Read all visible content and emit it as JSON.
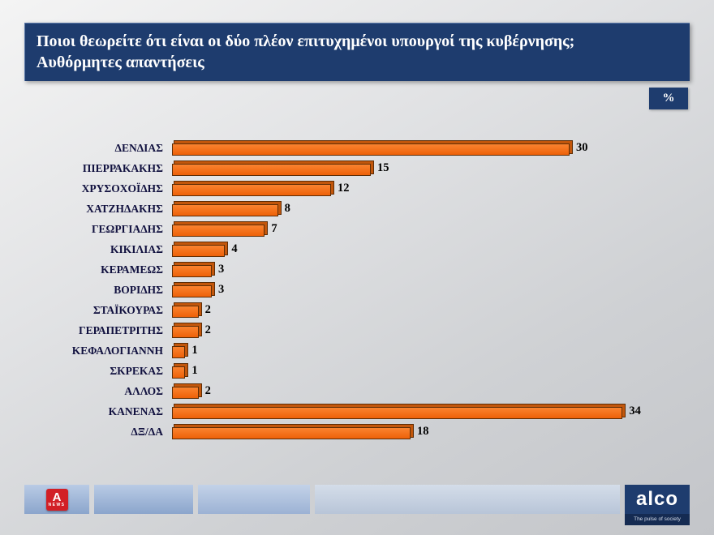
{
  "header": {
    "title_line1": "Ποιοι θεωρείτε ότι είναι οι δύο πλέον επιτυχημένοι υπουργοί της κυβέρνησης;",
    "title_line2": "Αυθόρμητες απαντήσεις"
  },
  "unit_badge": "%",
  "chart_data": {
    "type": "bar",
    "orientation": "horizontal",
    "title": "Ποιοι θεωρείτε ότι είναι οι δύο πλέον επιτυχημένοι υπουργοί της κυβέρνησης; Αυθόρμητες απαντήσεις",
    "unit": "%",
    "categories": [
      "ΔΕΝΔΙΑΣ",
      "ΠΙΕΡΡΑΚΑΚΗΣ",
      "ΧΡΥΣΟΧΟΪΔΗΣ",
      "ΧΑΤΖΗΔΑΚΗΣ",
      "ΓΕΩΡΓΙΑΔΗΣ",
      "ΚΙΚΙΛΙΑΣ",
      "ΚΕΡΑΜΕΩΣ",
      "ΒΟΡΙΔΗΣ",
      "ΣΤΑΪΚΟΥΡΑΣ",
      "ΓΕΡΑΠΕΤΡΙΤΗΣ",
      "ΚΕΦΑΛΟΓΙΑΝΝΗ",
      "ΣΚΡΕΚΑΣ",
      "ΑΛΛΟΣ",
      "ΚΑΝΕΝΑΣ",
      "ΔΞ/ΔΑ"
    ],
    "values": [
      30,
      15,
      12,
      8,
      7,
      4,
      3,
      3,
      2,
      2,
      1,
      1,
      2,
      34,
      18
    ],
    "xlim": [
      0,
      36
    ],
    "value_labels": true,
    "grid": false,
    "legend": false,
    "bar_color_top": "#FA8330",
    "bar_color_bottom": "#EE6108"
  },
  "footer": {
    "alpha": {
      "letter": "A",
      "news": "NEWS"
    },
    "alco": {
      "name": "alco",
      "tagline": "The pulse of society"
    }
  },
  "colors": {
    "accent_navy": "#1E3C6E",
    "bar_orange": "#F06A10",
    "alpha_red": "#D21F26",
    "background_silver": "#D8D9DC"
  }
}
